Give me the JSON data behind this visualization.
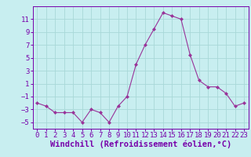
{
  "x": [
    0,
    1,
    2,
    3,
    4,
    5,
    6,
    7,
    8,
    9,
    10,
    11,
    12,
    13,
    14,
    15,
    16,
    17,
    18,
    19,
    20,
    21,
    22,
    23
  ],
  "y": [
    -2,
    -2.5,
    -3.5,
    -3.5,
    -3.5,
    -5,
    -3,
    -3.5,
    -5,
    -2.5,
    -1,
    4,
    7,
    9.5,
    12,
    11.5,
    11,
    5.5,
    1.5,
    0.5,
    0.5,
    -0.5,
    -2.5,
    -2
  ],
  "line_color": "#993399",
  "marker": "D",
  "marker_size": 2,
  "bg_color": "#c8eef0",
  "grid_color": "#a8d8d8",
  "xlabel": "Windchill (Refroidissement éolien,°C)",
  "xlabel_color": "#7700aa",
  "tick_color": "#7700aa",
  "ylim": [
    -6,
    13
  ],
  "yticks": [
    -5,
    -3,
    -1,
    1,
    3,
    5,
    7,
    9,
    11
  ],
  "xlim": [
    -0.5,
    23.5
  ],
  "xticks": [
    0,
    1,
    2,
    3,
    4,
    5,
    6,
    7,
    8,
    9,
    10,
    11,
    12,
    13,
    14,
    15,
    16,
    17,
    18,
    19,
    20,
    21,
    22,
    23
  ],
  "tick_fontsize": 6.5,
  "label_fontsize": 7.5
}
